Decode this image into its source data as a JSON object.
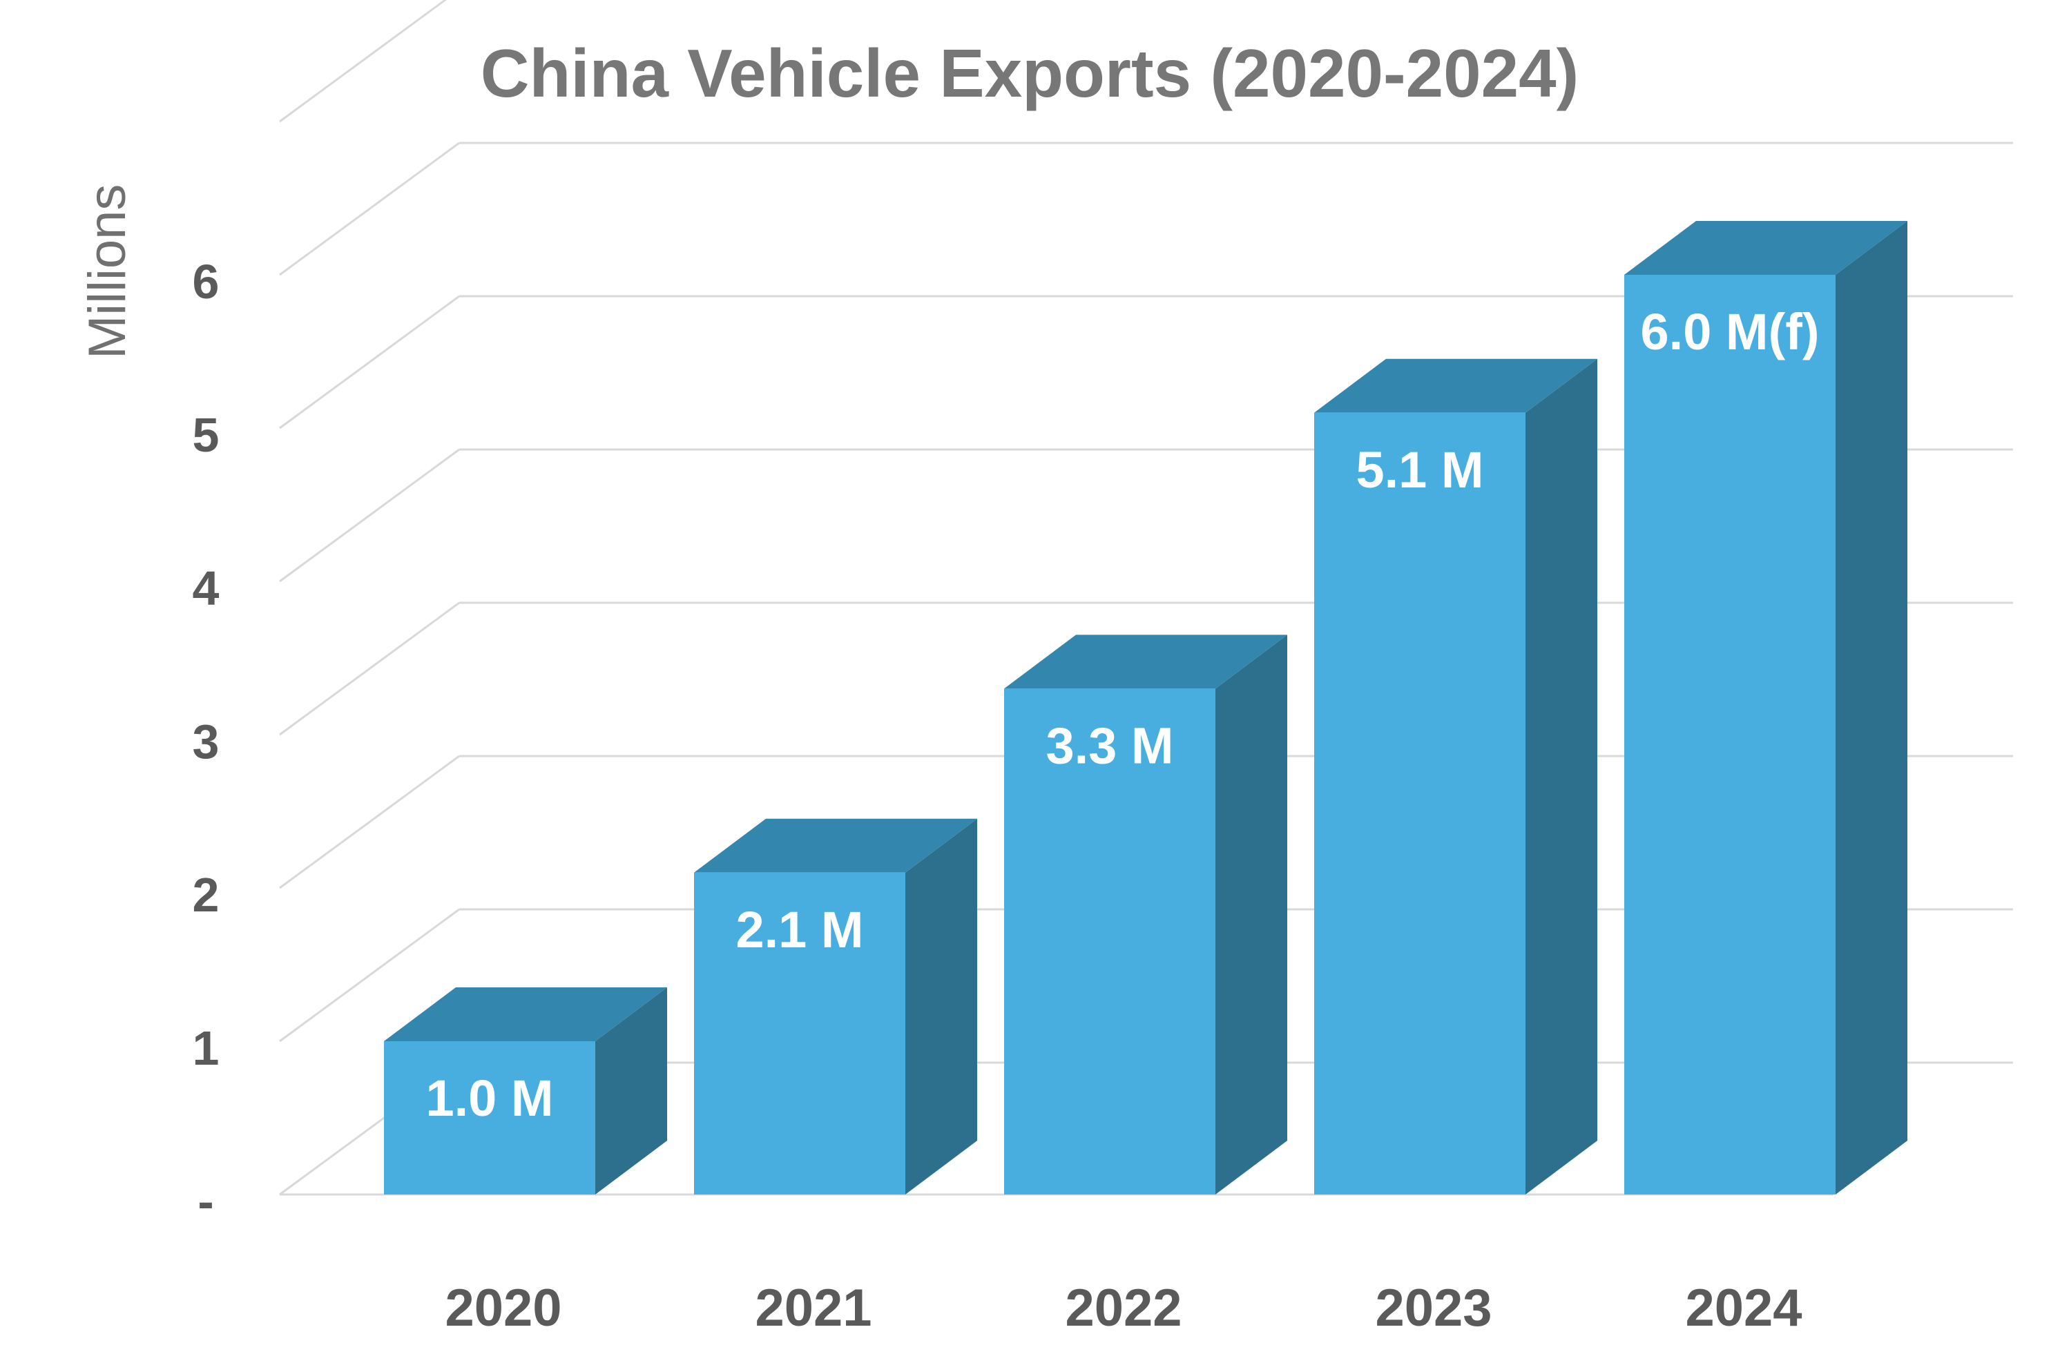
{
  "chart_data": {
    "type": "bar",
    "title": "China Vehicle Exports (2020-2024)",
    "xlabel": "",
    "ylabel": "Millions",
    "categories": [
      "2020",
      "2021",
      "2022",
      "2023",
      "2024"
    ],
    "values": [
      1.0,
      2.1,
      3.3,
      5.1,
      6.0
    ],
    "data_labels": [
      "1.0 M",
      "2.1 M",
      "3.3 M",
      "5.1 M",
      "6.0 M(f)"
    ],
    "ylim": [
      0,
      7
    ],
    "y_ticks": [
      0,
      1,
      2,
      3,
      4,
      5,
      6
    ],
    "y_tick_labels": [
      "-",
      "1",
      "2",
      "3",
      "4",
      "5",
      "6"
    ],
    "grid": true,
    "style": "3d-column",
    "colors": {
      "bar_front": "#47AEDF",
      "bar_top": "#3387AF",
      "bar_side": "#2C708E",
      "gridline": "#D9D9D9"
    }
  }
}
